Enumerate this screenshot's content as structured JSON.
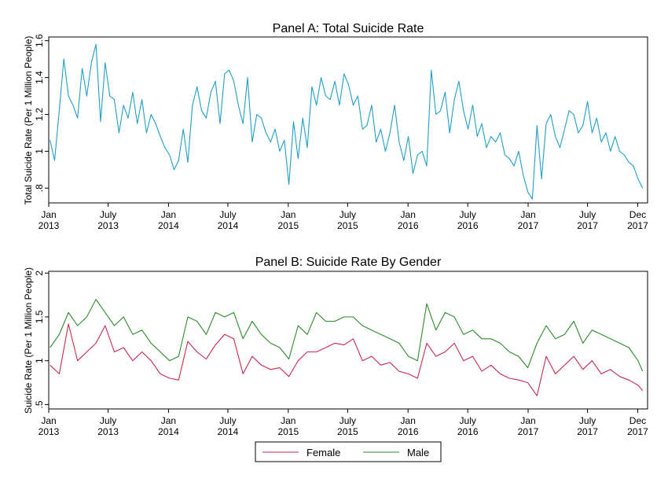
{
  "chart_data": [
    {
      "type": "line",
      "title": "Panel A: Total Suicide Rate",
      "xlabel": "",
      "ylabel": "Total Suicide Rate (Per 1 Million People)",
      "xlim": [
        "2013-01-01",
        "2017-12-31"
      ],
      "ylim": [
        0.72,
        1.62
      ],
      "yticks": [
        0.8,
        1.0,
        1.2,
        1.4,
        1.6
      ],
      "ytick_labels": [
        ".8",
        "1",
        "1.2",
        "1.4",
        "1.6"
      ],
      "xticks": [
        {
          "date": "2013-01-01",
          "label1": "Jan",
          "label2": "2013"
        },
        {
          "date": "2013-07-01",
          "label1": "July",
          "label2": "2013"
        },
        {
          "date": "2014-01-01",
          "label1": "Jan",
          "label2": "2014"
        },
        {
          "date": "2014-07-01",
          "label1": "July",
          "label2": "2014"
        },
        {
          "date": "2015-01-01",
          "label1": "Jan",
          "label2": "2015"
        },
        {
          "date": "2015-07-01",
          "label1": "July",
          "label2": "2015"
        },
        {
          "date": "2016-01-01",
          "label1": "Jan",
          "label2": "2016"
        },
        {
          "date": "2016-07-01",
          "label1": "July",
          "label2": "2016"
        },
        {
          "date": "2017-01-01",
          "label1": "Jan",
          "label2": "2017"
        },
        {
          "date": "2017-07-01",
          "label1": "July",
          "label2": "2017"
        },
        {
          "date": "2017-12-01",
          "label1": "Dec",
          "label2": "2017"
        }
      ],
      "grid": false,
      "series": [
        {
          "color": "#1f9ec8",
          "x": [
            "2013-01-05",
            "2013-01-19",
            "2013-02-02",
            "2013-02-16",
            "2013-03-02",
            "2013-03-16",
            "2013-03-30",
            "2013-04-13",
            "2013-04-27",
            "2013-05-11",
            "2013-05-25",
            "2013-06-08",
            "2013-06-22",
            "2013-07-06",
            "2013-07-20",
            "2013-08-03",
            "2013-08-17",
            "2013-08-31",
            "2013-09-14",
            "2013-09-28",
            "2013-10-12",
            "2013-10-26",
            "2013-11-09",
            "2013-11-23",
            "2013-12-07",
            "2013-12-21",
            "2014-01-04",
            "2014-01-18",
            "2014-02-01",
            "2014-02-15",
            "2014-03-01",
            "2014-03-15",
            "2014-03-29",
            "2014-04-12",
            "2014-04-26",
            "2014-05-10",
            "2014-05-24",
            "2014-06-07",
            "2014-06-21",
            "2014-07-05",
            "2014-07-19",
            "2014-08-02",
            "2014-08-16",
            "2014-08-30",
            "2014-09-13",
            "2014-09-27",
            "2014-10-11",
            "2014-10-25",
            "2014-11-08",
            "2014-11-22",
            "2014-12-06",
            "2014-12-20",
            "2015-01-03",
            "2015-01-17",
            "2015-01-31",
            "2015-02-14",
            "2015-02-28",
            "2015-03-14",
            "2015-03-28",
            "2015-04-11",
            "2015-04-25",
            "2015-05-09",
            "2015-05-23",
            "2015-06-06",
            "2015-06-20",
            "2015-07-04",
            "2015-07-18",
            "2015-08-01",
            "2015-08-15",
            "2015-08-29",
            "2015-09-12",
            "2015-09-26",
            "2015-10-10",
            "2015-10-24",
            "2015-11-07",
            "2015-11-21",
            "2015-12-05",
            "2015-12-19",
            "2016-01-02",
            "2016-01-16",
            "2016-01-30",
            "2016-02-13",
            "2016-02-27",
            "2016-03-12",
            "2016-03-26",
            "2016-04-09",
            "2016-04-23",
            "2016-05-07",
            "2016-05-21",
            "2016-06-04",
            "2016-06-18",
            "2016-07-02",
            "2016-07-16",
            "2016-07-30",
            "2016-08-13",
            "2016-08-27",
            "2016-09-10",
            "2016-09-24",
            "2016-10-08",
            "2016-10-22",
            "2016-11-05",
            "2016-11-19",
            "2016-12-03",
            "2016-12-17",
            "2016-12-31",
            "2017-01-14",
            "2017-01-28",
            "2017-02-11",
            "2017-02-25",
            "2017-03-11",
            "2017-03-25",
            "2017-04-08",
            "2017-04-22",
            "2017-05-06",
            "2017-05-20",
            "2017-06-03",
            "2017-06-17",
            "2017-07-01",
            "2017-07-15",
            "2017-07-29",
            "2017-08-12",
            "2017-08-26",
            "2017-09-09",
            "2017-09-23",
            "2017-10-07",
            "2017-10-21",
            "2017-11-04",
            "2017-11-18",
            "2017-12-02",
            "2017-12-16"
          ],
          "y": [
            1.06,
            0.95,
            1.22,
            1.5,
            1.3,
            1.25,
            1.18,
            1.45,
            1.3,
            1.48,
            1.58,
            1.16,
            1.48,
            1.3,
            1.28,
            1.1,
            1.25,
            1.18,
            1.32,
            1.15,
            1.28,
            1.1,
            1.2,
            1.15,
            1.08,
            1.02,
            0.98,
            0.9,
            0.95,
            1.12,
            0.94,
            1.25,
            1.35,
            1.22,
            1.18,
            1.32,
            1.38,
            1.15,
            1.42,
            1.44,
            1.38,
            1.25,
            1.15,
            1.4,
            1.05,
            1.2,
            1.18,
            1.1,
            1.05,
            1.12,
            1.0,
            1.06,
            0.82,
            1.16,
            0.96,
            1.18,
            1.02,
            1.35,
            1.25,
            1.4,
            1.3,
            1.28,
            1.38,
            1.25,
            1.42,
            1.36,
            1.25,
            1.3,
            1.12,
            1.14,
            1.25,
            1.05,
            1.12,
            1.0,
            1.1,
            1.25,
            1.05,
            0.95,
            1.08,
            0.88,
            0.98,
            1.0,
            0.92,
            1.44,
            1.2,
            1.22,
            1.32,
            1.1,
            1.28,
            1.38,
            1.22,
            1.12,
            1.25,
            1.08,
            1.15,
            1.02,
            1.08,
            1.05,
            1.1,
            0.98,
            0.96,
            0.92,
            1.0,
            0.87,
            0.78,
            0.74,
            1.14,
            0.85,
            1.15,
            1.2,
            1.08,
            1.02,
            1.12,
            1.22,
            1.2,
            1.1,
            1.14,
            1.27,
            1.1,
            1.18,
            1.05,
            1.1,
            1.0,
            1.08,
            1.0,
            0.98,
            0.94,
            0.92,
            0.85,
            0.8
          ]
        }
      ]
    },
    {
      "type": "line",
      "title": "Panel B: Suicide Rate By Gender",
      "xlabel": "",
      "ylabel": "Suicide Rate (Per 1 Million People)",
      "xlim": [
        "2013-01-01",
        "2017-12-31"
      ],
      "ylim": [
        0.45,
        2.02
      ],
      "yticks": [
        0.5,
        1.0,
        1.5,
        2.0
      ],
      "ytick_labels": [
        ".5",
        "1",
        "1.5",
        "2"
      ],
      "xticks": [
        {
          "date": "2013-01-01",
          "label1": "Jan",
          "label2": "2013"
        },
        {
          "date": "2013-07-01",
          "label1": "July",
          "label2": "2013"
        },
        {
          "date": "2014-01-01",
          "label1": "Jan",
          "label2": "2014"
        },
        {
          "date": "2014-07-01",
          "label1": "July",
          "label2": "2014"
        },
        {
          "date": "2015-01-01",
          "label1": "Jan",
          "label2": "2015"
        },
        {
          "date": "2015-07-01",
          "label1": "July",
          "label2": "2015"
        },
        {
          "date": "2016-01-01",
          "label1": "Jan",
          "label2": "2016"
        },
        {
          "date": "2016-07-01",
          "label1": "July",
          "label2": "2016"
        },
        {
          "date": "2017-01-01",
          "label1": "Jan",
          "label2": "2017"
        },
        {
          "date": "2017-07-01",
          "label1": "July",
          "label2": "2017"
        },
        {
          "date": "2017-12-01",
          "label1": "Dec",
          "label2": "2017"
        }
      ],
      "grid": false,
      "legend": "bottom",
      "series": [
        {
          "name": "Female",
          "color": "#c8284f",
          "x": [
            "2013-01-05",
            "2013-02-02",
            "2013-03-02",
            "2013-03-30",
            "2013-04-27",
            "2013-05-25",
            "2013-06-22",
            "2013-07-20",
            "2013-08-17",
            "2013-09-14",
            "2013-10-12",
            "2013-11-09",
            "2013-12-07",
            "2014-01-04",
            "2014-02-01",
            "2014-03-01",
            "2014-03-29",
            "2014-04-26",
            "2014-05-24",
            "2014-06-21",
            "2014-07-19",
            "2014-08-16",
            "2014-09-13",
            "2014-10-11",
            "2014-11-08",
            "2014-12-06",
            "2015-01-03",
            "2015-01-31",
            "2015-02-28",
            "2015-03-28",
            "2015-04-25",
            "2015-05-23",
            "2015-06-20",
            "2015-07-18",
            "2015-08-15",
            "2015-09-12",
            "2015-10-10",
            "2015-11-07",
            "2015-12-05",
            "2016-01-02",
            "2016-01-30",
            "2016-02-27",
            "2016-03-26",
            "2016-04-23",
            "2016-05-21",
            "2016-06-18",
            "2016-07-16",
            "2016-08-13",
            "2016-09-10",
            "2016-10-08",
            "2016-11-05",
            "2016-12-03",
            "2016-12-31",
            "2017-01-28",
            "2017-02-25",
            "2017-03-25",
            "2017-04-22",
            "2017-05-20",
            "2017-06-17",
            "2017-07-15",
            "2017-08-12",
            "2017-09-09",
            "2017-10-07",
            "2017-11-04",
            "2017-12-02",
            "2017-12-16"
          ],
          "y": [
            0.95,
            0.85,
            1.42,
            1.0,
            1.1,
            1.2,
            1.4,
            1.1,
            1.15,
            1.0,
            1.1,
            1.0,
            0.85,
            0.8,
            0.78,
            1.22,
            1.1,
            1.02,
            1.18,
            1.3,
            1.25,
            0.85,
            1.05,
            0.95,
            0.9,
            0.92,
            0.82,
            1.0,
            1.1,
            1.1,
            1.15,
            1.2,
            1.18,
            1.25,
            1.0,
            1.05,
            0.95,
            0.98,
            0.88,
            0.85,
            0.8,
            1.2,
            1.05,
            1.1,
            1.2,
            1.0,
            1.05,
            0.88,
            0.95,
            0.85,
            0.8,
            0.78,
            0.75,
            0.6,
            1.05,
            0.85,
            0.95,
            1.05,
            0.9,
            1.0,
            0.85,
            0.9,
            0.82,
            0.78,
            0.72,
            0.66
          ]
        },
        {
          "name": "Male",
          "color": "#2a8c2a",
          "x": [
            "2013-01-05",
            "2013-02-02",
            "2013-03-02",
            "2013-03-30",
            "2013-04-27",
            "2013-05-25",
            "2013-06-22",
            "2013-07-20",
            "2013-08-17",
            "2013-09-14",
            "2013-10-12",
            "2013-11-09",
            "2013-12-07",
            "2014-01-04",
            "2014-02-01",
            "2014-03-01",
            "2014-03-29",
            "2014-04-26",
            "2014-05-24",
            "2014-06-21",
            "2014-07-19",
            "2014-08-16",
            "2014-09-13",
            "2014-10-11",
            "2014-11-08",
            "2014-12-06",
            "2015-01-03",
            "2015-01-31",
            "2015-02-28",
            "2015-03-28",
            "2015-04-25",
            "2015-05-23",
            "2015-06-20",
            "2015-07-18",
            "2015-08-15",
            "2015-09-12",
            "2015-10-10",
            "2015-11-07",
            "2015-12-05",
            "2016-01-02",
            "2016-01-30",
            "2016-02-27",
            "2016-03-26",
            "2016-04-23",
            "2016-05-21",
            "2016-06-18",
            "2016-07-16",
            "2016-08-13",
            "2016-09-10",
            "2016-10-08",
            "2016-11-05",
            "2016-12-03",
            "2016-12-31",
            "2017-01-28",
            "2017-02-25",
            "2017-03-25",
            "2017-04-22",
            "2017-05-20",
            "2017-06-17",
            "2017-07-15",
            "2017-08-12",
            "2017-09-09",
            "2017-10-07",
            "2017-11-04",
            "2017-12-02",
            "2017-12-16"
          ],
          "y": [
            1.15,
            1.3,
            1.55,
            1.4,
            1.5,
            1.7,
            1.55,
            1.4,
            1.5,
            1.3,
            1.35,
            1.2,
            1.1,
            1.0,
            1.05,
            1.5,
            1.45,
            1.3,
            1.55,
            1.5,
            1.55,
            1.25,
            1.45,
            1.3,
            1.2,
            1.15,
            1.02,
            1.4,
            1.3,
            1.55,
            1.45,
            1.45,
            1.5,
            1.5,
            1.4,
            1.35,
            1.3,
            1.25,
            1.2,
            1.05,
            1.0,
            1.65,
            1.35,
            1.55,
            1.5,
            1.3,
            1.35,
            1.25,
            1.25,
            1.2,
            1.1,
            1.05,
            0.92,
            1.2,
            1.4,
            1.25,
            1.3,
            1.45,
            1.2,
            1.35,
            1.3,
            1.25,
            1.2,
            1.15,
            1.0,
            0.88
          ]
        }
      ]
    }
  ]
}
